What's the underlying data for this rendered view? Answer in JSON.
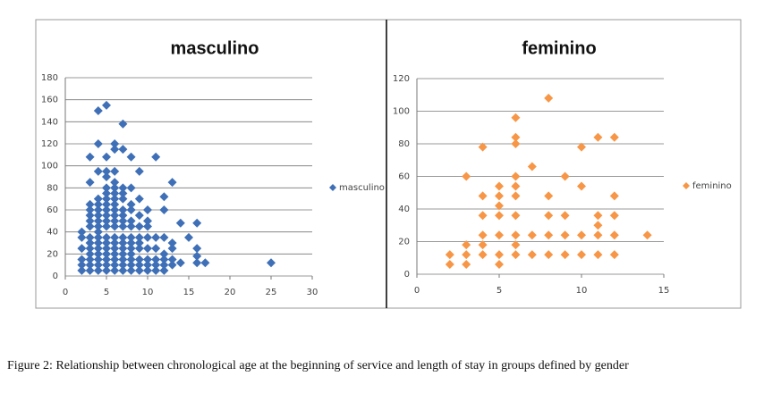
{
  "chart_data": [
    {
      "type": "scatter",
      "title": "masculino",
      "legend": "right",
      "grid": true,
      "xlim": [
        0,
        30
      ],
      "xticks": [
        0,
        5,
        10,
        15,
        20,
        25,
        30
      ],
      "ylim": [
        0,
        180
      ],
      "yticks": [
        0,
        20,
        40,
        60,
        80,
        100,
        120,
        140,
        160,
        180
      ],
      "x": [
        2,
        2,
        2,
        2,
        2,
        2,
        3,
        3,
        3,
        3,
        3,
        3,
        3,
        3,
        3,
        3,
        3,
        3,
        3,
        3,
        4,
        4,
        4,
        4,
        4,
        4,
        4,
        4,
        4,
        4,
        4,
        4,
        4,
        4,
        4,
        4,
        4,
        5,
        5,
        5,
        5,
        5,
        5,
        5,
        5,
        5,
        5,
        5,
        5,
        5,
        5,
        5,
        5,
        5,
        5,
        5,
        6,
        6,
        6,
        6,
        6,
        6,
        6,
        6,
        6,
        6,
        6,
        6,
        6,
        6,
        6,
        6,
        6,
        6,
        6,
        7,
        7,
        7,
        7,
        7,
        7,
        7,
        7,
        7,
        7,
        7,
        7,
        7,
        7,
        7,
        7,
        8,
        8,
        8,
        8,
        8,
        8,
        8,
        8,
        8,
        8,
        8,
        8,
        8,
        9,
        9,
        9,
        9,
        9,
        9,
        9,
        9,
        9,
        9,
        10,
        10,
        10,
        10,
        10,
        10,
        10,
        10,
        11,
        11,
        11,
        11,
        11,
        11,
        12,
        12,
        12,
        12,
        12,
        12,
        12,
        13,
        13,
        13,
        13,
        13,
        14,
        14,
        15,
        16,
        16,
        16,
        16,
        17,
        25
      ],
      "series": [
        {
          "name": "masculino",
          "color": "#3f70b7",
          "values": [
            5,
            10,
            15,
            25,
            35,
            40,
            5,
            10,
            15,
            20,
            25,
            30,
            35,
            45,
            50,
            55,
            60,
            65,
            85,
            108,
            5,
            10,
            15,
            20,
            25,
            30,
            35,
            40,
            45,
            50,
            55,
            60,
            65,
            70,
            95,
            120,
            150,
            5,
            10,
            15,
            20,
            25,
            30,
            35,
            45,
            50,
            55,
            60,
            65,
            70,
            75,
            80,
            90,
            95,
            108,
            155,
            5,
            10,
            15,
            20,
            25,
            30,
            35,
            45,
            50,
            55,
            60,
            65,
            70,
            75,
            80,
            85,
            95,
            115,
            120,
            5,
            10,
            15,
            20,
            25,
            30,
            35,
            45,
            50,
            55,
            60,
            70,
            75,
            80,
            115,
            138,
            5,
            10,
            15,
            20,
            25,
            30,
            35,
            45,
            50,
            60,
            65,
            80,
            108,
            5,
            10,
            15,
            25,
            30,
            35,
            45,
            55,
            70,
            95,
            5,
            10,
            15,
            25,
            35,
            45,
            50,
            60,
            5,
            10,
            15,
            25,
            35,
            108,
            5,
            10,
            15,
            20,
            35,
            60,
            72,
            10,
            15,
            25,
            30,
            85,
            12,
            48,
            35,
            12,
            18,
            25,
            48,
            12,
            12
          ]
        }
      ]
    },
    {
      "type": "scatter",
      "title": "feminino",
      "legend": "right",
      "grid": true,
      "xlim": [
        0,
        15
      ],
      "xticks": [
        0,
        5,
        10,
        15
      ],
      "ylim": [
        0,
        120
      ],
      "yticks": [
        0,
        20,
        40,
        60,
        80,
        100,
        120
      ],
      "x": [
        2,
        2,
        3,
        3,
        3,
        3,
        4,
        4,
        4,
        4,
        4,
        4,
        5,
        5,
        5,
        5,
        5,
        5,
        5,
        6,
        6,
        6,
        6,
        6,
        6,
        6,
        6,
        6,
        6,
        7,
        7,
        7,
        8,
        8,
        8,
        8,
        8,
        9,
        9,
        9,
        9,
        10,
        10,
        10,
        10,
        11,
        11,
        11,
        11,
        11,
        12,
        12,
        12,
        12,
        12,
        14
      ],
      "series": [
        {
          "name": "feminino",
          "color": "#f79646",
          "values": [
            6,
            12,
            6,
            12,
            18,
            60,
            12,
            18,
            24,
            36,
            48,
            78,
            6,
            12,
            24,
            36,
            42,
            48,
            54,
            12,
            18,
            24,
            36,
            48,
            54,
            60,
            80,
            84,
            96,
            12,
            24,
            66,
            12,
            24,
            36,
            48,
            108,
            12,
            24,
            36,
            60,
            12,
            24,
            54,
            78,
            12,
            24,
            30,
            36,
            84,
            12,
            24,
            36,
            48,
            84,
            24
          ]
        }
      ]
    }
  ],
  "caption": "Figure 2: Relationship between chronological age at the beginning of service and length of stay in groups defined by gender"
}
